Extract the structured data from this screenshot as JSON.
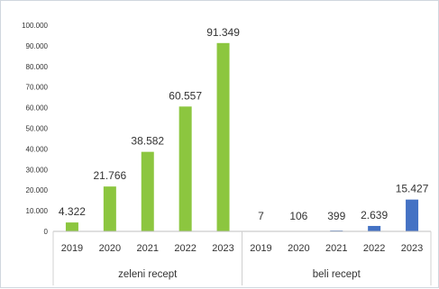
{
  "chart_data": {
    "type": "bar",
    "ylim": [
      0,
      100000
    ],
    "yticks": [
      "0",
      "10.000",
      "20.000",
      "30.000",
      "40.000",
      "50.000",
      "60.000",
      "70.000",
      "80.000",
      "90.000",
      "100.000"
    ],
    "grid": false,
    "groups": [
      {
        "name": "zeleni recept",
        "color": "#8cc63f",
        "categories": [
          "2019",
          "2020",
          "2021",
          "2022",
          "2023"
        ],
        "values": [
          4322,
          21766,
          38582,
          60557,
          91349
        ],
        "data_labels": [
          "4.322",
          "21.766",
          "38.582",
          "60.557",
          "91.349"
        ]
      },
      {
        "name": "beli recept",
        "color": "#4472c4",
        "categories": [
          "2019",
          "2020",
          "2021",
          "2022",
          "2023"
        ],
        "values": [
          7,
          106,
          399,
          2639,
          15427
        ],
        "data_labels": [
          "7",
          "106",
          "399",
          "2.639",
          "15.427"
        ]
      }
    ]
  }
}
